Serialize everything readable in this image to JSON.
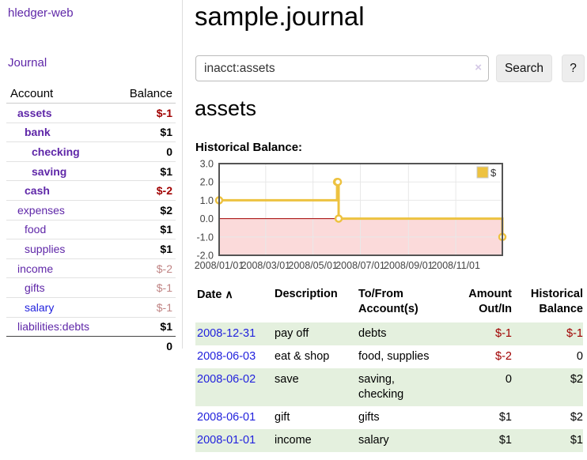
{
  "sidebar": {
    "app_title": "hledger-web",
    "journal_label": "Journal",
    "account_header": "Account",
    "balance_header": "Balance",
    "accounts": [
      {
        "name": "assets",
        "level": 0,
        "bold": true,
        "balance": "$-1",
        "bal_class": "bal-neg"
      },
      {
        "name": "bank",
        "level": 1,
        "bold": true,
        "balance": "$1",
        "bal_class": "bal-pos"
      },
      {
        "name": "checking",
        "level": 2,
        "bold": true,
        "balance": "0",
        "bal_class": "bal-pos"
      },
      {
        "name": "saving",
        "level": 2,
        "bold": true,
        "balance": "$1",
        "bal_class": "bal-pos"
      },
      {
        "name": "cash",
        "level": 1,
        "bold": true,
        "balance": "$-2",
        "bal_class": "bal-neg"
      },
      {
        "name": "expenses",
        "level": 0,
        "bold": false,
        "balance": "$2",
        "bal_class": "bal-pos"
      },
      {
        "name": "food",
        "level": 1,
        "bold": false,
        "balance": "$1",
        "bal_class": "bal-pos"
      },
      {
        "name": "supplies",
        "level": 1,
        "bold": false,
        "balance": "$1",
        "bal_class": "bal-pos"
      },
      {
        "name": "income",
        "level": 0,
        "bold": false,
        "balance": "$-2",
        "bal_class": "bal-fade"
      },
      {
        "name": "gifts",
        "level": 1,
        "bold": false,
        "balance": "$-1",
        "bal_class": "bal-fade"
      },
      {
        "name": "salary",
        "level": 1,
        "bold": false,
        "balance": "$-1",
        "bal_class": "bal-fade",
        "link": "blue"
      },
      {
        "name": "liabilities:debts",
        "level": 0,
        "bold": false,
        "balance": "$1",
        "bal_class": "bal-pos",
        "last": true
      }
    ],
    "total": "0"
  },
  "main": {
    "title": "sample.journal",
    "search": {
      "value": "inacct:assets",
      "clear_icon": "×",
      "button_label": "Search",
      "help_label": "?"
    },
    "account_heading": "assets",
    "chart_section_label": "Historical Balance:"
  },
  "chart_data": {
    "type": "line",
    "title": "Historical Balance",
    "step": true,
    "x_range": [
      "2008-01-01",
      "2008-12-31"
    ],
    "ylim": [
      -2,
      3
    ],
    "y_ticks": [
      3,
      2,
      1,
      0,
      -1,
      -2
    ],
    "x_ticks": [
      {
        "t": "2008-01-01",
        "label": "2008/01/01"
      },
      {
        "t": "2008-03-01",
        "label": "2008/03/01"
      },
      {
        "t": "2008-05-01",
        "label": "2008/05/01"
      },
      {
        "t": "2008-07-01",
        "label": "2008/07/01"
      },
      {
        "t": "2008-09-01",
        "label": "2008/09/01"
      },
      {
        "t": "2008-11-01",
        "label": "2008/11/01"
      }
    ],
    "series": [
      {
        "name": "$",
        "color": "#edc240",
        "points": [
          [
            "2008-01-01",
            1
          ],
          [
            "2008-06-01",
            2
          ],
          [
            "2008-06-02",
            2
          ],
          [
            "2008-06-03",
            0
          ],
          [
            "2008-12-31",
            -1
          ]
        ]
      }
    ],
    "negative_fill": "#fbdada",
    "zero_line_color": "#a40000",
    "grid_color": "#e8e8e8",
    "border_color": "#545454",
    "legend_position": "top-right"
  },
  "table": {
    "headers": [
      "Date",
      "Description",
      "To/From Account(s)",
      "Amount Out/In",
      "Historical Balance"
    ],
    "sort_icon": "∧",
    "rows": [
      {
        "date": "2008-12-31",
        "description": "pay off",
        "accounts": "debts",
        "amount": "$-1",
        "amount_neg": true,
        "balance": "$-1",
        "balance_neg": true
      },
      {
        "date": "2008-06-03",
        "description": "eat & shop",
        "accounts": "food, supplies",
        "amount": "$-2",
        "amount_neg": true,
        "balance": "0",
        "balance_neg": false
      },
      {
        "date": "2008-06-02",
        "description": "save",
        "accounts": "saving,\nchecking",
        "amount": "0",
        "amount_neg": false,
        "balance": "$2",
        "balance_neg": false
      },
      {
        "date": "2008-06-01",
        "description": "gift",
        "accounts": "gifts",
        "amount": "$1",
        "amount_neg": false,
        "balance": "$2",
        "balance_neg": false
      },
      {
        "date": "2008-01-01",
        "description": "income",
        "accounts": "salary",
        "amount": "$1",
        "amount_neg": false,
        "balance": "$1",
        "balance_neg": false
      }
    ]
  }
}
